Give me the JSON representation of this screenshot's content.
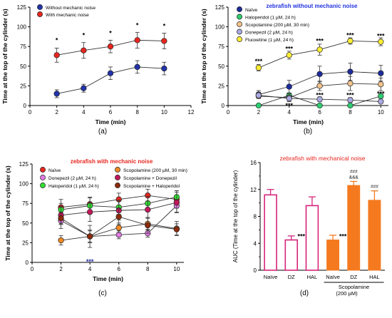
{
  "chart_data": [
    {
      "panel": "(a)",
      "type": "line",
      "title": "",
      "xlabel": "Time (min)",
      "ylabel": "Time at the top of the cylinder (s)",
      "xlim": [
        0,
        12
      ],
      "ylim": [
        0,
        125
      ],
      "xticks": [
        0,
        2,
        4,
        6,
        8,
        10,
        12
      ],
      "yticks": [
        0,
        25,
        50,
        75,
        100,
        125
      ],
      "x": [
        2,
        4,
        6,
        8,
        10
      ],
      "legend_position": "top-left",
      "series": [
        {
          "name": "Without mechanic noise",
          "color": "#2233aa",
          "values": [
            15,
            22,
            41,
            49,
            47
          ],
          "errors": [
            5,
            5,
            8,
            8,
            8
          ]
        },
        {
          "name": "With mechanic noise",
          "color": "#e8261f",
          "values": [
            64,
            70,
            75,
            83,
            82
          ],
          "errors": [
            9,
            10,
            8,
            10,
            10
          ]
        }
      ],
      "annotations": [
        {
          "x": 2,
          "y": 84,
          "text": "*"
        },
        {
          "x": 4,
          "y": 90,
          "text": "*"
        },
        {
          "x": 6,
          "y": 93,
          "text": "*"
        },
        {
          "x": 8,
          "y": 103,
          "text": "*"
        },
        {
          "x": 10,
          "y": 102,
          "text": "*"
        }
      ]
    },
    {
      "panel": "(b)",
      "type": "line",
      "title": "zebrafish without mechanic noise",
      "title_color": "#2233dd",
      "xlabel": "Time (min)",
      "ylabel": "Time at the top of the cylinder (s)",
      "xlim": [
        0,
        10.5
      ],
      "ylim": [
        0,
        125
      ],
      "xticks": [
        0,
        2,
        4,
        6,
        8,
        10
      ],
      "yticks": [
        0,
        25,
        50,
        75,
        100,
        125
      ],
      "x": [
        2,
        4,
        6,
        8,
        10
      ],
      "legend_position": "top-left",
      "series": [
        {
          "name": "Naïve",
          "color": "#1c2c9c",
          "values": [
            14,
            24,
            40,
            43,
            41
          ],
          "errors": [
            5,
            8,
            10,
            11,
            10
          ]
        },
        {
          "name": "Haloperidol (1 µM, 24 h)",
          "color": "#2ecc71",
          "values": [
            0,
            13,
            0,
            0,
            12
          ],
          "errors": [
            0,
            3,
            0,
            0,
            3
          ]
        },
        {
          "name": "Scopolamine (200 µM, 30 min)",
          "color": "#f2c28c",
          "values": [
            12,
            10,
            25,
            28,
            27
          ],
          "errors": [
            3,
            5,
            6,
            9,
            8
          ]
        },
        {
          "name": "Donepezil (2 µM, 24 h)",
          "color": "#a9a9e0",
          "values": [
            13,
            9,
            8,
            7,
            5
          ],
          "errors": [
            4,
            3,
            3,
            3,
            2
          ]
        },
        {
          "name": "Fluoxetine (1 µM, 24 h)",
          "color": "#ffee33",
          "values": [
            48,
            64,
            71,
            82,
            81
          ],
          "errors": [
            4,
            5,
            7,
            4,
            5
          ]
        }
      ],
      "annotations": [
        {
          "x": 2,
          "y": 57,
          "text": "***"
        },
        {
          "x": 4,
          "y": 73,
          "text": "***"
        },
        {
          "x": 6,
          "y": 83,
          "text": "***"
        },
        {
          "x": 8,
          "y": 90,
          "text": "***"
        },
        {
          "x": 10,
          "y": 89,
          "text": "***"
        },
        {
          "x": 4,
          "y": 1,
          "text": "***"
        },
        {
          "x": 6,
          "y": 14,
          "text": "***"
        },
        {
          "x": 8,
          "y": 14,
          "text": "***"
        },
        {
          "x": 10,
          "y": 16,
          "text": "***"
        }
      ]
    },
    {
      "panel": "(c)",
      "type": "line",
      "title": "zebrafish with mechanic noise",
      "title_color": "#e8261f",
      "xlabel": "Time (min)",
      "ylabel": "Time at the top of the cylinder (s)",
      "xlim": [
        0,
        10.5
      ],
      "ylim": [
        0,
        125
      ],
      "xticks": [
        0,
        2,
        4,
        6,
        8,
        10
      ],
      "yticks": [
        0,
        25,
        50,
        75,
        100,
        125
      ],
      "x": [
        2,
        4,
        6,
        8,
        10
      ],
      "legend_position": "top",
      "series": [
        {
          "name": "Naïve",
          "color": "#e8261f",
          "values": [
            70,
            74,
            80,
            85,
            80
          ],
          "errors": [
            10,
            9,
            8,
            8,
            11
          ]
        },
        {
          "name": "Donepezil (2 µM, 24 h)",
          "color": "#e07ae0",
          "values": [
            53,
            33,
            35,
            37,
            72
          ],
          "errors": [
            10,
            7,
            5,
            5,
            8
          ]
        },
        {
          "name": "Haloperidol (1 µM, 24 h)",
          "color": "#33dd33",
          "values": [
            67,
            72,
            70,
            75,
            83
          ],
          "errors": [
            8,
            10,
            9,
            9,
            8
          ]
        },
        {
          "name": "Scopolamine (200 µM, 30 min)",
          "color": "#f08a24",
          "values": [
            28,
            33,
            44,
            49,
            43
          ],
          "errors": [
            6,
            8,
            6,
            8,
            9
          ]
        },
        {
          "name": "Scopolamine + Donepezil",
          "color": "#c2185b",
          "values": [
            60,
            64,
            66,
            67,
            76
          ],
          "errors": [
            11,
            12,
            12,
            11,
            13
          ]
        },
        {
          "name": "Scopolamine + Haloperidol",
          "color": "#8c2a0c",
          "values": [
            56,
            33,
            58,
            47,
            42
          ],
          "errors": [
            8,
            14,
            10,
            10,
            7
          ]
        }
      ],
      "annotations": [
        {
          "x": 4,
          "y": 2,
          "text": "***",
          "color": "#1c2c9c"
        }
      ]
    },
    {
      "panel": "(d)",
      "type": "bar",
      "title": "zebrafish with mechanical noise",
      "title_color": "#e8261f",
      "xlabel": "",
      "ylabel": "AUC (Time at the top of the cylinder)",
      "ylim": [
        0,
        16
      ],
      "yticks": [
        0,
        4,
        8,
        12,
        16
      ],
      "categories": [
        "Naïve",
        "DZ",
        "HAL",
        "Naïve",
        "DZ",
        "HAL"
      ],
      "values": [
        11.2,
        4.5,
        9.6,
        4.5,
        12.6,
        10.4
      ],
      "errors": [
        0.8,
        0.6,
        1.3,
        0.7,
        0.6,
        1.4
      ],
      "bar_styles": [
        "outline",
        "outline",
        "outline",
        "filled",
        "filled",
        "filled"
      ],
      "bar_colors": [
        "#d6247a",
        "#d6247a",
        "#d6247a",
        "#f57a1f",
        "#f57a1f",
        "#f57a1f"
      ],
      "group_label": "Scopolamine",
      "group_sublabel": "(200 µM)",
      "annotations": [
        {
          "bar": 1,
          "text": "***"
        },
        {
          "bar": 3,
          "text": "***"
        },
        {
          "bar": 4,
          "text": "&&&"
        },
        {
          "bar": 4,
          "text": "###"
        },
        {
          "bar": 5,
          "text": "###"
        }
      ]
    }
  ],
  "panel_labels": [
    "(a)",
    "(b)",
    "(c)",
    "(d)"
  ]
}
